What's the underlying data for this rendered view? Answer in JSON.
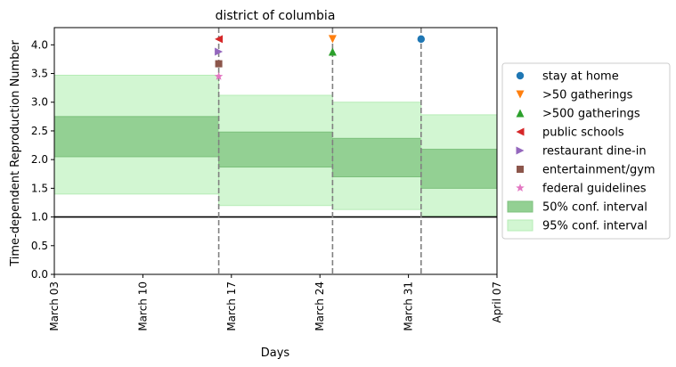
{
  "chart_data": {
    "type": "line",
    "title": "district of columbia",
    "xlabel": "Days",
    "ylabel": "Time-dependent Reproduction Number",
    "xlim": [
      "2020-03-03",
      "2020-04-07"
    ],
    "ylim": [
      0,
      4.3
    ],
    "x_ticks": [
      {
        "date": "2020-03-03",
        "label": "March 03"
      },
      {
        "date": "2020-03-10",
        "label": "March 10"
      },
      {
        "date": "2020-03-17",
        "label": "March 17"
      },
      {
        "date": "2020-03-24",
        "label": "March 24"
      },
      {
        "date": "2020-03-31",
        "label": "March 31"
      },
      {
        "date": "2020-04-07",
        "label": "April 07"
      }
    ],
    "y_ticks": [
      "0.0",
      "0.5",
      "1.0",
      "1.5",
      "2.0",
      "2.5",
      "3.0",
      "3.5",
      "4.0"
    ],
    "reference_line": 1.0,
    "change_points": [
      "2020-03-16",
      "2020-03-25",
      "2020-04-01"
    ],
    "intervals": [
      {
        "start": "2020-03-03",
        "end": "2020-03-16",
        "ci50": [
          2.05,
          2.75
        ],
        "ci95": [
          1.4,
          3.47
        ]
      },
      {
        "start": "2020-03-16",
        "end": "2020-03-25",
        "ci50": [
          1.87,
          2.48
        ],
        "ci95": [
          1.2,
          3.12
        ]
      },
      {
        "start": "2020-03-25",
        "end": "2020-04-01",
        "ci50": [
          1.7,
          2.37
        ],
        "ci95": [
          1.13,
          3.0
        ]
      },
      {
        "start": "2020-04-01",
        "end": "2020-04-07",
        "ci50": [
          1.5,
          2.18
        ],
        "ci95": [
          1.02,
          2.78
        ]
      }
    ],
    "interventions": [
      {
        "name": "stay at home",
        "date": "2020-04-01",
        "y": 4.1,
        "marker": "circle",
        "color": "#1f77b4"
      },
      {
        "name": ">50 gatherings",
        "date": "2020-03-25",
        "y": 4.1,
        "marker": "triangle-down",
        "color": "#ff7f0e"
      },
      {
        "name": ">500 gatherings",
        "date": "2020-03-25",
        "y": 3.88,
        "marker": "triangle-up",
        "color": "#2ca02c"
      },
      {
        "name": "public schools",
        "date": "2020-03-16",
        "y": 4.1,
        "marker": "triangle-left",
        "color": "#d62728"
      },
      {
        "name": "restaurant dine-in",
        "date": "2020-03-16",
        "y": 3.88,
        "marker": "triangle-right",
        "color": "#9467bd"
      },
      {
        "name": "entertainment/gym",
        "date": "2020-03-16",
        "y": 3.67,
        "marker": "square",
        "color": "#8c564b"
      },
      {
        "name": "federal guidelines",
        "date": "2020-03-16",
        "y": 3.45,
        "marker": "star",
        "color": "#e377c2"
      }
    ],
    "legend": {
      "placement": "center-right",
      "ci50_label": "50% conf. interval",
      "ci95_label": "95% conf. interval"
    },
    "colors": {
      "ci50": "#93d093",
      "ci95": "#d2f6d2",
      "reference": "#000000",
      "change_line": "#808080"
    }
  }
}
